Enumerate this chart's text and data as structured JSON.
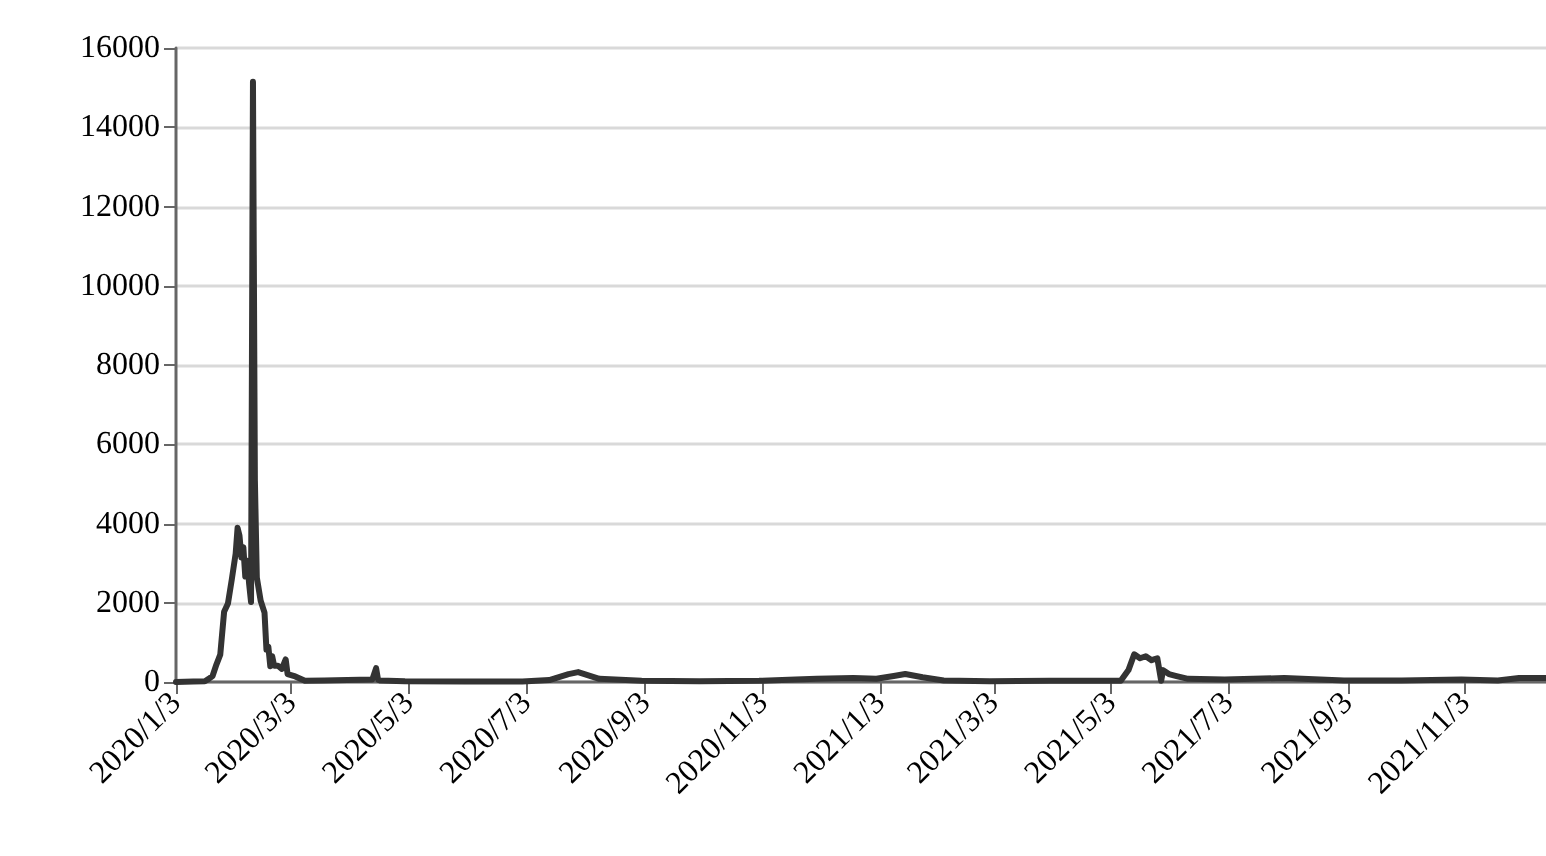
{
  "chart_data": {
    "type": "line",
    "line_style": "solid",
    "marker": "none",
    "grid": "y",
    "x": [
      "2020-01-03",
      "2020-01-12",
      "2020-01-18",
      "2020-01-20",
      "2020-01-22",
      "2020-01-24",
      "2020-01-26",
      "2020-01-28",
      "2020-01-30",
      "2020-02-01",
      "2020-02-03",
      "2020-02-04",
      "2020-02-05",
      "2020-02-06",
      "2020-02-07",
      "2020-02-08",
      "2020-02-09",
      "2020-02-10",
      "2020-02-11",
      "2020-02-12",
      "2020-02-13",
      "2020-02-14",
      "2020-02-16",
      "2020-02-18",
      "2020-02-19",
      "2020-02-20",
      "2020-02-21",
      "2020-02-22",
      "2020-02-23",
      "2020-02-25",
      "2020-02-27",
      "2020-02-29",
      "2020-03-01",
      "2020-03-05",
      "2020-03-10",
      "2020-03-20",
      "2020-04-01",
      "2020-04-14",
      "2020-04-16",
      "2020-04-17",
      "2020-04-18",
      "2020-05-01",
      "2020-06-01",
      "2020-07-01",
      "2020-07-15",
      "2020-07-25",
      "2020-07-30",
      "2020-08-10",
      "2020-09-01",
      "2020-10-01",
      "2020-11-01",
      "2020-11-20",
      "2020-12-01",
      "2020-12-20",
      "2021-01-01",
      "2021-01-10",
      "2021-01-16",
      "2021-01-25",
      "2021-02-05",
      "2021-03-01",
      "2021-04-01",
      "2021-05-08",
      "2021-05-12",
      "2021-05-15",
      "2021-05-18",
      "2021-05-21",
      "2021-05-24",
      "2021-05-27",
      "2021-05-29",
      "2021-05-30",
      "2021-06-02",
      "2021-06-06",
      "2021-06-12",
      "2021-07-01",
      "2021-08-01",
      "2021-09-01",
      "2021-10-01",
      "2021-11-01",
      "2021-11-20",
      "2021-12-01",
      "2021-12-15"
    ],
    "series": [
      {
        "color": "#333333",
        "values": [
          0,
          10,
          20,
          80,
          150,
          440,
          690,
          1770,
          1980,
          2590,
          3240,
          3890,
          3690,
          3140,
          3400,
          2660,
          3060,
          2480,
          2020,
          15150,
          5090,
          2640,
          2050,
          1750,
          820,
          890,
          400,
          650,
          410,
          410,
          330,
          570,
          200,
          140,
          30,
          40,
          50,
          60,
          350,
          60,
          40,
          20,
          10,
          10,
          50,
          200,
          250,
          80,
          30,
          20,
          30,
          60,
          80,
          100,
          80,
          150,
          200,
          120,
          40,
          20,
          30,
          30,
          300,
          700,
          600,
          650,
          550,
          600,
          30,
          300,
          200,
          150,
          80,
          60,
          100,
          40,
          40,
          60,
          40,
          100,
          100
        ]
      }
    ],
    "xlim": [
      "2020-01-03",
      "2021-12-15"
    ],
    "xticks": [
      {
        "value": "2020-01-03",
        "label": "2020/1/3"
      },
      {
        "value": "2020-03-03",
        "label": "2020/3/3"
      },
      {
        "value": "2020-05-03",
        "label": "2020/5/3"
      },
      {
        "value": "2020-07-03",
        "label": "2020/7/3"
      },
      {
        "value": "2020-09-03",
        "label": "2020/9/3"
      },
      {
        "value": "2020-11-03",
        "label": "2020/11/3"
      },
      {
        "value": "2021-01-03",
        "label": "2021/1/3"
      },
      {
        "value": "2021-03-03",
        "label": "2021/3/3"
      },
      {
        "value": "2021-05-03",
        "label": "2021/5/3"
      },
      {
        "value": "2021-07-03",
        "label": "2021/7/3"
      },
      {
        "value": "2021-09-03",
        "label": "2021/9/3"
      },
      {
        "value": "2021-11-03",
        "label": "2021/11/3"
      }
    ],
    "ylim": [
      0,
      16000
    ],
    "yticks": [
      0,
      2000,
      4000,
      6000,
      8000,
      10000,
      12000,
      14000,
      16000
    ]
  }
}
